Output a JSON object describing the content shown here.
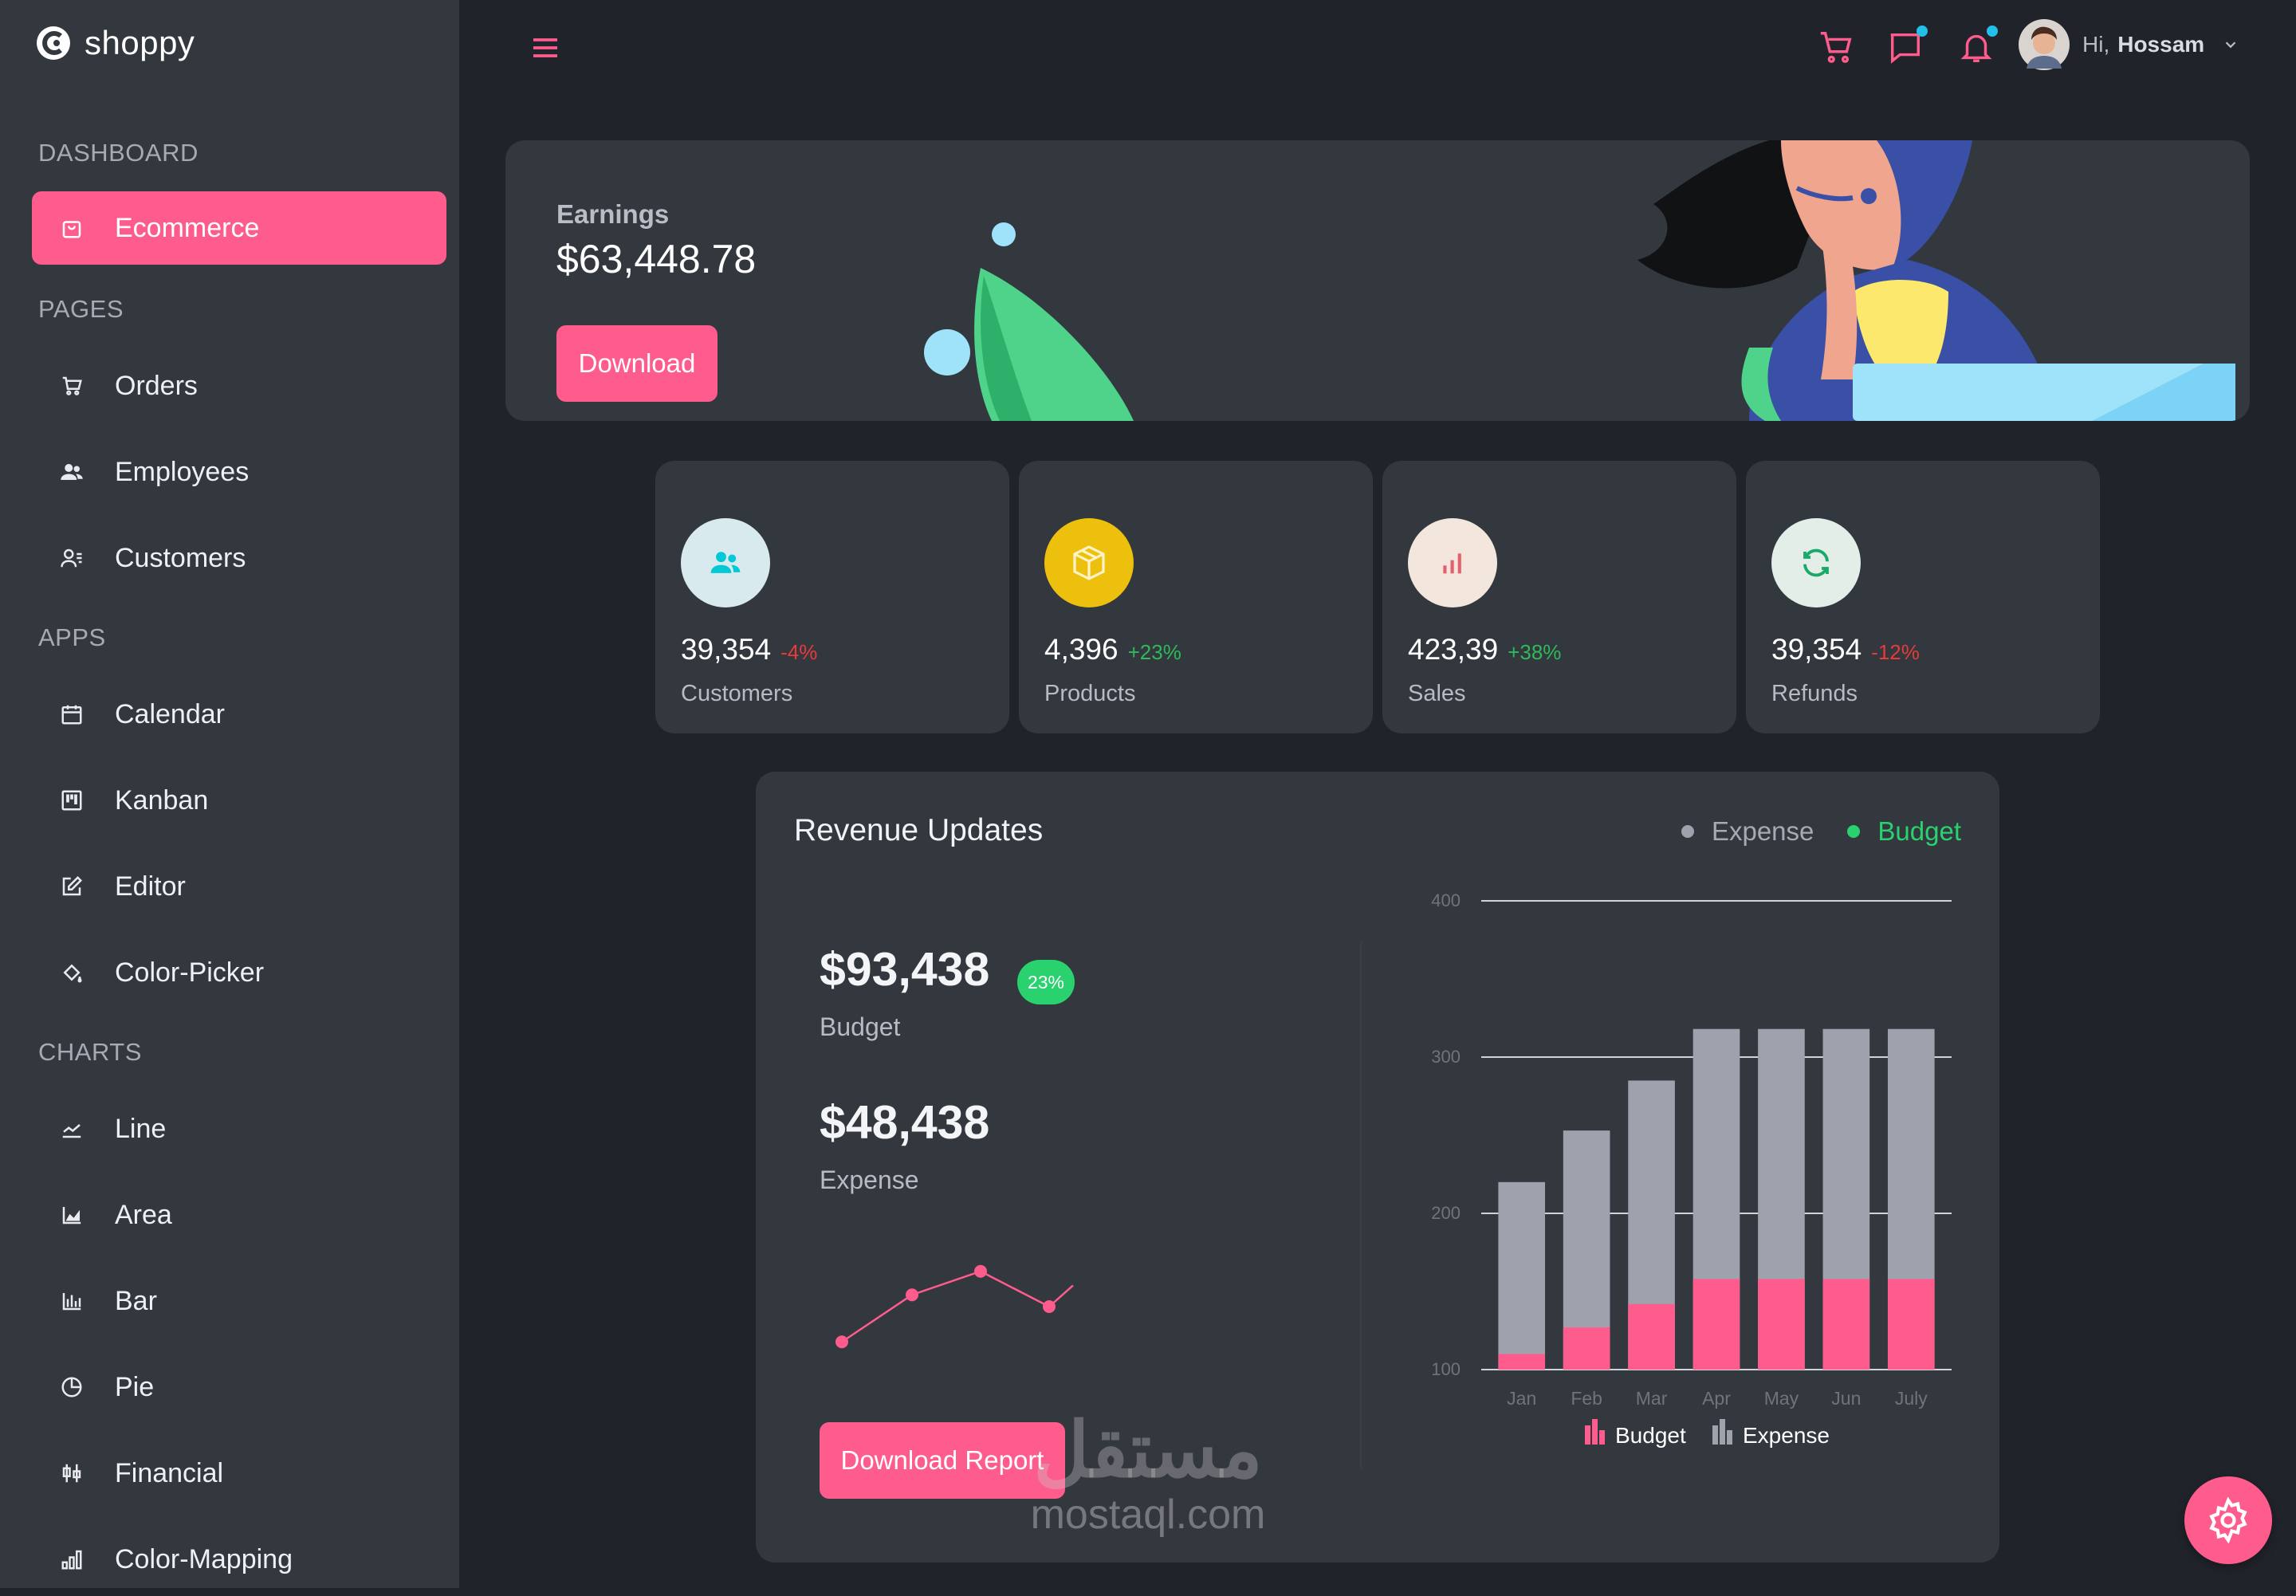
{
  "brand": {
    "name": "shoppy"
  },
  "sidebar": {
    "sections": [
      "DASHBOARD",
      "PAGES",
      "APPS",
      "CHARTS"
    ],
    "items": [
      {
        "label": "Ecommerce",
        "icon": "shopping-bag-icon"
      },
      {
        "label": "Orders",
        "icon": "cart-icon"
      },
      {
        "label": "Employees",
        "icon": "people-icon"
      },
      {
        "label": "Customers",
        "icon": "customers-icon"
      },
      {
        "label": "Calendar",
        "icon": "calendar-icon"
      },
      {
        "label": "Kanban",
        "icon": "kanban-icon"
      },
      {
        "label": "Editor",
        "icon": "edit-icon"
      },
      {
        "label": "Color-Picker",
        "icon": "paint-bucket-icon"
      },
      {
        "label": "Line",
        "icon": "line-chart-icon"
      },
      {
        "label": "Area",
        "icon": "area-chart-icon"
      },
      {
        "label": "Bar",
        "icon": "bar-chart-icon"
      },
      {
        "label": "Pie",
        "icon": "pie-chart-icon"
      },
      {
        "label": "Financial",
        "icon": "financial-icon"
      },
      {
        "label": "Color-Mapping",
        "icon": "color-mapping-icon"
      }
    ]
  },
  "header": {
    "greeting": "Hi,",
    "user_name": "Hossam"
  },
  "earnings": {
    "label": "Earnings",
    "amount": "$63,448.78",
    "button": "Download"
  },
  "stats": [
    {
      "value": "39,354",
      "pct": "-4%",
      "label": "Customers",
      "trend": "down",
      "icon": "customers-icon",
      "circle": "#d9eaee",
      "icon_color": "#03c9d7"
    },
    {
      "value": "4,396",
      "pct": "+23%",
      "label": "Products",
      "trend": "up",
      "icon": "box-icon",
      "circle": "#ecc00d",
      "icon_color": "#fff4c8"
    },
    {
      "value": "423,39",
      "pct": "+38%",
      "label": "Sales",
      "trend": "up",
      "icon": "bar-chart-icon",
      "circle": "#f2e6dd",
      "icon_color": "#e4606d"
    },
    {
      "value": "39,354",
      "pct": "-12%",
      "label": "Refunds",
      "trend": "down",
      "icon": "refresh-icon",
      "circle": "#e4eee8",
      "icon_color": "#1aa86b"
    }
  ],
  "revenue": {
    "title": "Revenue Updates",
    "legend": [
      "Expense",
      "Budget"
    ],
    "budget_value": "$93,438",
    "budget_badge": "23%",
    "budget_label": "Budget",
    "expense_value": "$48,438",
    "expense_label": "Expense",
    "button": "Download Report"
  },
  "colors": {
    "accent": "#ff5c8e",
    "positive": "#2fb95b",
    "negative": "#e73b3b",
    "budget_green": "#2ad26f"
  },
  "chart_data": [
    {
      "type": "line",
      "note_series": "sparkline",
      "values": [
        1,
        5,
        7,
        4
      ]
    },
    {
      "type": "bar",
      "categories": [
        "Jan",
        "Feb",
        "Mar",
        "Apr",
        "May",
        "Jun",
        "July"
      ],
      "series": [
        {
          "name": "Budget",
          "values": [
            110,
            127,
            142,
            158,
            158,
            158,
            158
          ],
          "color": "#ff5c8e"
        },
        {
          "name": "Expense",
          "values": [
            220,
            253,
            285,
            318,
            318,
            318,
            318
          ],
          "color": "#9ea2ad"
        }
      ],
      "ylim": [
        100,
        400
      ],
      "yticks": [
        100,
        200,
        300,
        400
      ],
      "stacked_overlay": true,
      "legend": "bottom"
    }
  ],
  "watermark": {
    "arabic": "مستقل",
    "latin": "mostaql.com"
  }
}
